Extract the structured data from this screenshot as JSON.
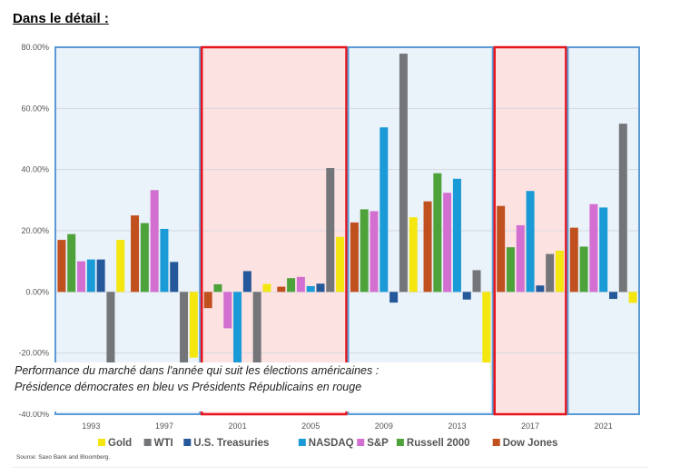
{
  "heading": "Dans le détail :",
  "caption": {
    "line1": "Performance du marché dans l'année qui suit les élections américaines :",
    "line2": "Présidence démocrates en bleu vs Présidents Républicains en rouge"
  },
  "source": "Source: Saxo Bank and Bloomberg.",
  "colors": {
    "democrat_fill": "#eaf2fa",
    "democrat_border": "#5b9bd5",
    "republican_fill": "#fde2e2",
    "republican_border": "#e8141b"
  },
  "chart_data": {
    "type": "bar",
    "categories": [
      "1993",
      "1997",
      "2001",
      "2005",
      "2009",
      "2013",
      "2017",
      "2021"
    ],
    "party": [
      "D",
      "D",
      "R",
      "R",
      "D",
      "D",
      "R",
      "D"
    ],
    "ylim": [
      -40,
      80
    ],
    "yticks": [
      -40,
      -20,
      0,
      20,
      40,
      60,
      80
    ],
    "ytick_labels": [
      "-40.00%",
      "-20.00%",
      "0.00%",
      "20.00%",
      "40.00%",
      "60.00%",
      "80.00%"
    ],
    "grid": true,
    "legend_position": "bottom",
    "legend_order": [
      "Gold",
      "WTI",
      "U.S. Treasuries",
      "NASDAQ",
      "S&P",
      "Russell 2000",
      "Dow Jones"
    ],
    "series": [
      {
        "name": "Dow Jones",
        "color": "#c0501e",
        "values": [
          17,
          25,
          -5.3,
          1.7,
          22.7,
          29.6,
          28.1,
          21
        ]
      },
      {
        "name": "Russell 2000",
        "color": "#4ea23a",
        "values": [
          18.9,
          22.5,
          2.5,
          4.5,
          27,
          38.8,
          14.6,
          14.8
        ]
      },
      {
        "name": "S&P",
        "color": "#d36fd0",
        "values": [
          10,
          33.3,
          -11.9,
          4.9,
          26.4,
          32.4,
          21.8,
          28.7
        ]
      },
      {
        "name": "NASDAQ",
        "color": "#1a9ad6",
        "values": [
          10.6,
          20.6,
          -30,
          1.9,
          53.8,
          37,
          33,
          27.6
        ]
      },
      {
        "name": "U.S. Treasuries",
        "color": "#25589a",
        "values": [
          10.6,
          9.8,
          6.8,
          2.7,
          -3.5,
          -2.5,
          2.1,
          -2.3
        ]
      },
      {
        "name": "WTI",
        "color": "#737578",
        "values": [
          -30,
          -30,
          -26,
          40.5,
          77.9,
          7.1,
          12.4,
          55
        ]
      },
      {
        "name": "Gold",
        "color": "#f4e60f",
        "values": [
          17,
          -21.5,
          2.6,
          18,
          24.4,
          -28.3,
          13.5,
          -3.6
        ]
      }
    ]
  }
}
